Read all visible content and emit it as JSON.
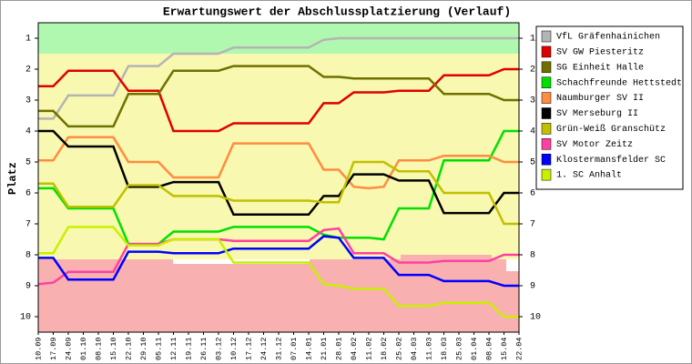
{
  "chart_data": {
    "type": "line",
    "title": "Erwartungswert der Abschlussplatzierung (Verlauf)",
    "y_label": "Platz",
    "categories": [
      "10.09",
      "17.09",
      "24.09",
      "01.10",
      "08.10",
      "15.10",
      "22.10",
      "29.10",
      "05.11",
      "12.11",
      "19.11",
      "26.11",
      "03.12",
      "10.12",
      "17.12",
      "24.12",
      "31.12",
      "07.01",
      "14.01",
      "21.01",
      "28.01",
      "04.02",
      "11.02",
      "18.02",
      "25.02",
      "04.03",
      "11.03",
      "18.03",
      "25.03",
      "01.04",
      "08.04",
      "15.04",
      "22.04"
    ],
    "ylim": [
      10.5,
      0.5
    ],
    "yticks": [
      1,
      2,
      3,
      4,
      5,
      6,
      7,
      8,
      9,
      10
    ],
    "series": [
      {
        "name": "VfL Gräfenhainichen",
        "color": "#b4b4b4",
        "values": [
          3.6,
          3.6,
          2.85,
          2.85,
          2.85,
          2.85,
          1.9,
          1.9,
          1.9,
          1.5,
          1.5,
          1.5,
          1.5,
          1.3,
          1.3,
          1.3,
          1.3,
          1.3,
          1.3,
          1.05,
          1,
          1,
          1,
          1,
          1,
          1,
          1,
          1,
          1,
          1,
          1,
          1,
          1
        ]
      },
      {
        "name": "SV GW Piesteritz",
        "color": "#e00000",
        "values": [
          2.55,
          2.55,
          2.05,
          2.05,
          2.05,
          2.05,
          2.7,
          2.7,
          2.7,
          4,
          4,
          4,
          4,
          3.75,
          3.75,
          3.75,
          3.75,
          3.75,
          3.75,
          3.1,
          3.1,
          2.75,
          2.75,
          2.75,
          2.7,
          2.7,
          2.7,
          2.2,
          2.2,
          2.2,
          2.2,
          2,
          2
        ]
      },
      {
        "name": "SG Einheit Halle",
        "color": "#707000",
        "values": [
          3.35,
          3.35,
          3.85,
          3.85,
          3.85,
          3.85,
          2.8,
          2.8,
          2.8,
          2.05,
          2.05,
          2.05,
          2.05,
          1.9,
          1.9,
          1.9,
          1.9,
          1.9,
          1.9,
          2.25,
          2.25,
          2.3,
          2.3,
          2.3,
          2.3,
          2.3,
          2.3,
          2.8,
          2.8,
          2.8,
          2.8,
          3,
          3
        ]
      },
      {
        "name": "Schachfreunde Hettstedt",
        "color": "#00e000",
        "values": [
          5.85,
          5.85,
          6.5,
          6.5,
          6.5,
          6.5,
          7.65,
          7.65,
          7.65,
          7.25,
          7.25,
          7.25,
          7.25,
          7.1,
          7.1,
          7.1,
          7.1,
          7.1,
          7.1,
          7.35,
          7.45,
          7.45,
          7.45,
          7.5,
          6.5,
          6.5,
          6.5,
          4.95,
          4.95,
          4.95,
          4.95,
          4,
          4
        ]
      },
      {
        "name": "Naumburger SV II",
        "color": "#ff8c40",
        "values": [
          4.95,
          4.95,
          4.2,
          4.2,
          4.2,
          4.2,
          5,
          5,
          5,
          5.5,
          5.5,
          5.5,
          5.5,
          4.4,
          4.4,
          4.4,
          4.4,
          4.4,
          4.4,
          5.25,
          5.25,
          5.8,
          5.85,
          5.8,
          4.95,
          4.95,
          4.95,
          4.8,
          4.8,
          4.8,
          4.8,
          5,
          5
        ]
      },
      {
        "name": "SV Merseburg II",
        "color": "#000000",
        "values": [
          4,
          4,
          4.5,
          4.5,
          4.5,
          4.5,
          5.8,
          5.8,
          5.8,
          5.65,
          5.65,
          5.65,
          5.65,
          6.7,
          6.7,
          6.7,
          6.7,
          6.7,
          6.7,
          6.1,
          6.1,
          5.4,
          5.4,
          5.4,
          5.6,
          5.6,
          5.6,
          6.65,
          6.65,
          6.65,
          6.65,
          6,
          6
        ]
      },
      {
        "name": "Grün-Weiß Granschütz",
        "color": "#c0c000",
        "values": [
          5.7,
          5.7,
          6.45,
          6.45,
          6.45,
          6.45,
          5.75,
          5.75,
          5.75,
          6.1,
          6.1,
          6.1,
          6.1,
          6.25,
          6.25,
          6.25,
          6.25,
          6.25,
          6.25,
          6.3,
          6.3,
          5,
          5,
          5,
          5.3,
          5.3,
          5.3,
          6,
          6,
          6,
          6,
          7,
          7
        ]
      },
      {
        "name": "SV Motor Zeitz",
        "color": "#ff40a0",
        "values": [
          8.95,
          8.9,
          8.55,
          8.55,
          8.55,
          8.55,
          7.65,
          7.65,
          7.65,
          7.5,
          7.5,
          7.5,
          7.5,
          7.55,
          7.55,
          7.55,
          7.55,
          7.55,
          7.55,
          7.2,
          7.15,
          7.95,
          7.95,
          7.95,
          8.25,
          8.25,
          8.25,
          8.2,
          8.2,
          8.2,
          8.2,
          8,
          8
        ]
      },
      {
        "name": "Klostermansfelder SC",
        "color": "#0000ff",
        "values": [
          8.1,
          8.1,
          8.8,
          8.8,
          8.8,
          8.8,
          7.9,
          7.9,
          7.9,
          7.95,
          7.95,
          7.95,
          7.95,
          7.8,
          7.8,
          7.8,
          7.8,
          7.8,
          7.8,
          7.4,
          7.45,
          8.1,
          8.1,
          8.1,
          8.65,
          8.65,
          8.65,
          8.85,
          8.85,
          8.85,
          8.85,
          9,
          9
        ]
      },
      {
        "name": "1. SC Anhalt",
        "color": "#c8f000",
        "values": [
          7.95,
          7.95,
          7.1,
          7.1,
          7.1,
          7.1,
          7.7,
          7.7,
          7.7,
          7.5,
          7.5,
          7.5,
          7.5,
          8.25,
          8.25,
          8.25,
          8.25,
          8.25,
          8.25,
          8.95,
          9,
          9.1,
          9.1,
          9.1,
          9.65,
          9.65,
          9.65,
          9.55,
          9.55,
          9.55,
          9.55,
          10,
          10
        ]
      }
    ]
  }
}
